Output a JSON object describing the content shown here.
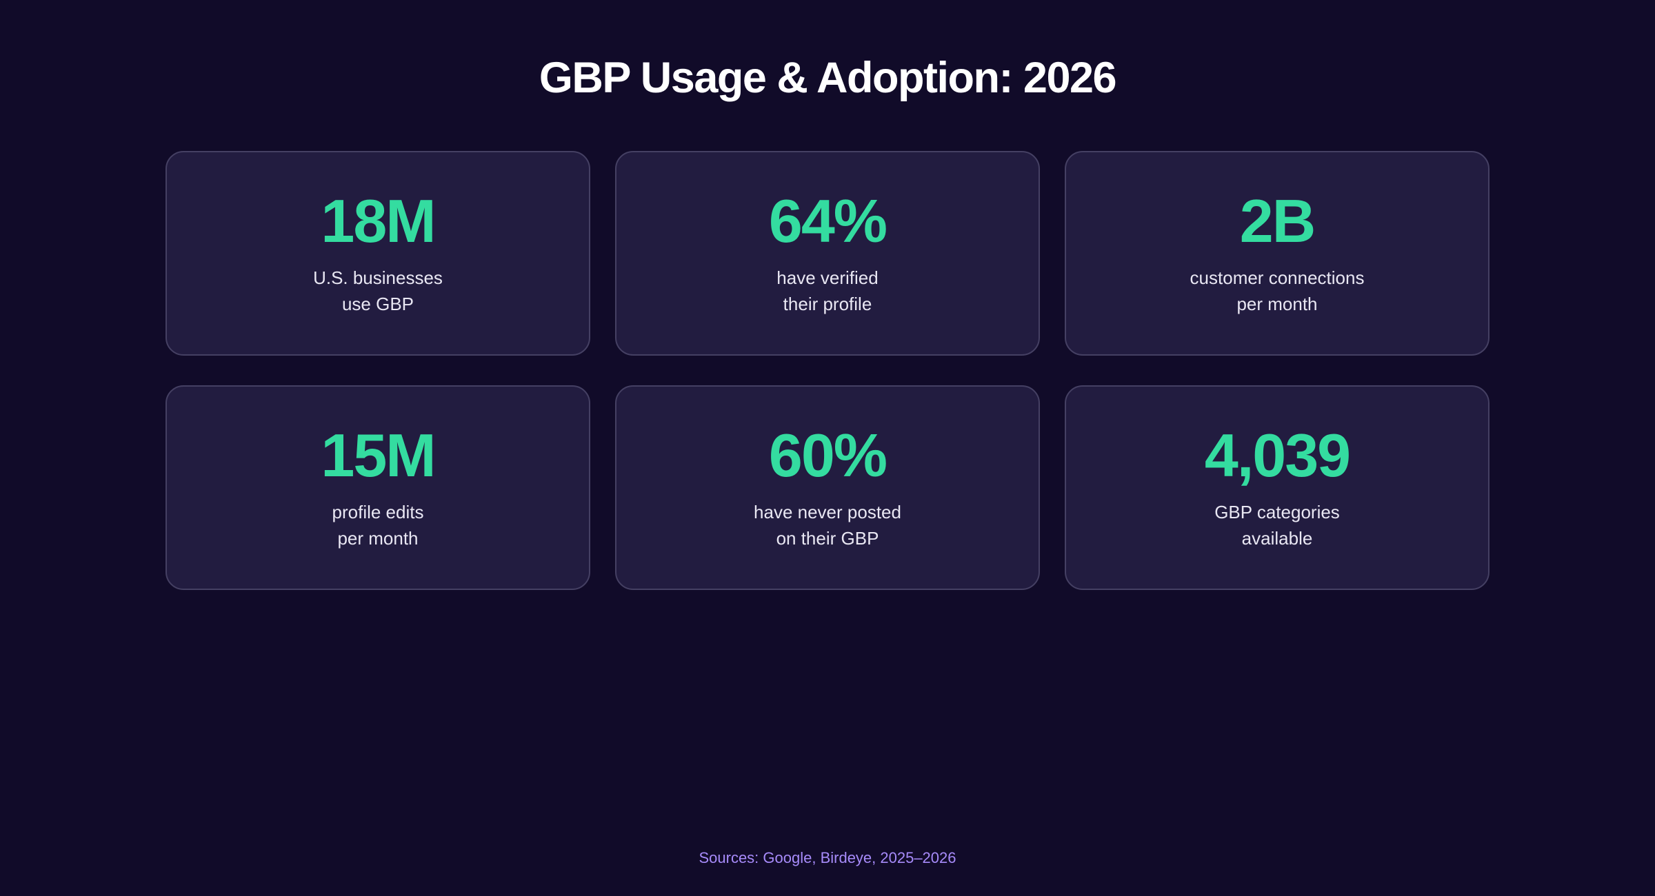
{
  "title": "GBP Usage & Adoption: 2026",
  "footer": {
    "sources": "Sources: Google, Birdeye, 2025–2026"
  },
  "colors": {
    "background": "#110b29",
    "card_background": "#221c40",
    "card_border": "#454063",
    "accent_green": "#34dca0",
    "label_text": "#e9e7f3",
    "title_text": "#ffffff",
    "footer_text": "#a78bfa"
  },
  "stats": [
    {
      "value": "18M",
      "label_line1": "U.S. businesses",
      "label_line2": "use GBP"
    },
    {
      "value": "64%",
      "label_line1": "have verified",
      "label_line2": "their profile"
    },
    {
      "value": "2B",
      "label_line1": "customer connections",
      "label_line2": "per month"
    },
    {
      "value": "15M",
      "label_line1": "profile edits",
      "label_line2": "per month"
    },
    {
      "value": "60%",
      "label_line1": "have never posted",
      "label_line2": "on their GBP"
    },
    {
      "value": "4,039",
      "label_line1": "GBP categories",
      "label_line2": "available"
    }
  ],
  "chart_data": {
    "type": "table",
    "title": "GBP Usage & Adoption: 2026",
    "categories": [
      "U.S. businesses use GBP",
      "have verified their profile",
      "customer connections per month",
      "profile edits per month",
      "have never posted on their GBP",
      "GBP categories available"
    ],
    "values": [
      "18M",
      "64%",
      "2B",
      "15M",
      "60%",
      "4,039"
    ],
    "numeric_values": [
      18000000,
      64,
      2000000000,
      15000000,
      60,
      4039
    ],
    "units": [
      "businesses",
      "percent",
      "connections",
      "edits",
      "percent",
      "categories"
    ],
    "layout": "3x2 grid of KPI cards",
    "source_note": "Sources: Google, Birdeye, 2025–2026"
  }
}
